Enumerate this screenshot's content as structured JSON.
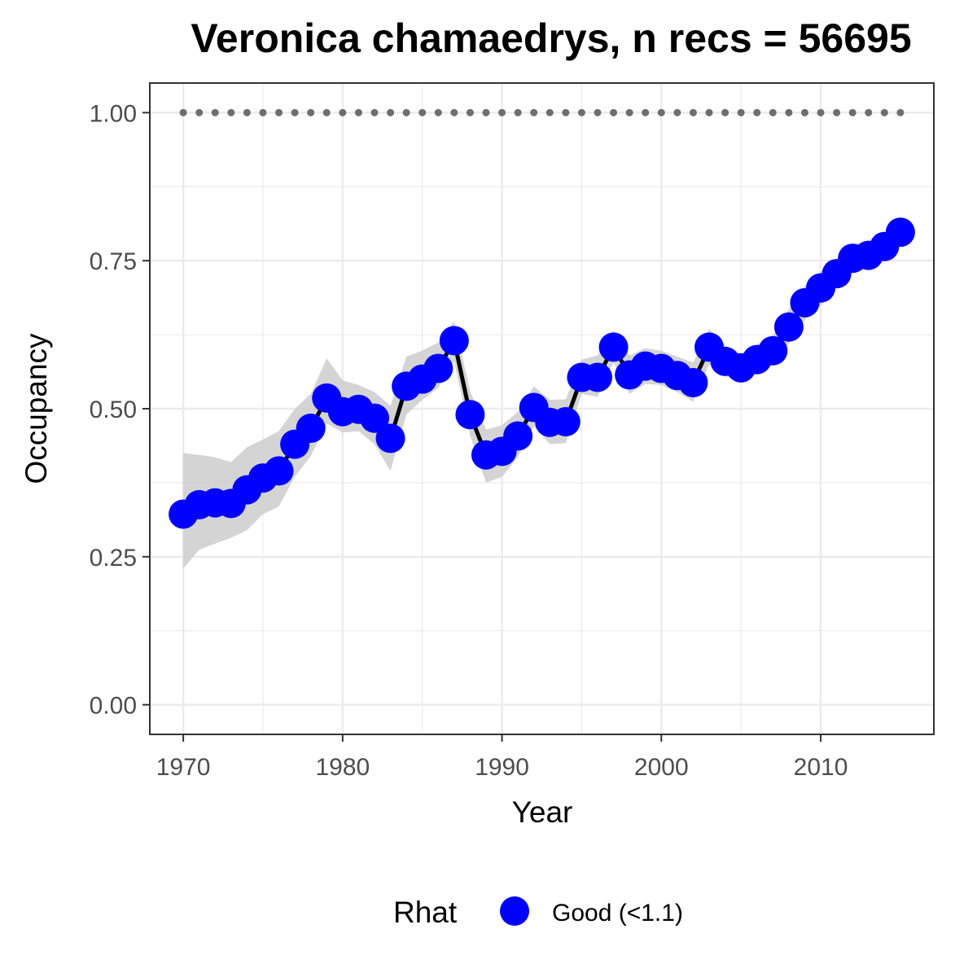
{
  "chart_data": {
    "type": "line",
    "title": "Veronica chamaedrys, n recs = 56695",
    "xlabel": "Year",
    "ylabel": "Occupancy",
    "xlim": [
      1967.9,
      2017.1
    ],
    "ylim": [
      -0.05,
      1.05
    ],
    "x_ticks": [
      1970,
      1980,
      1990,
      2000,
      2010
    ],
    "y_ticks": [
      0.0,
      0.25,
      0.5,
      0.75,
      1.0
    ],
    "y_tick_labels": [
      "0.00",
      "0.25",
      "0.50",
      "0.75",
      "1.00"
    ],
    "grid": true,
    "x": [
      1970,
      1971,
      1972,
      1973,
      1974,
      1975,
      1976,
      1977,
      1978,
      1979,
      1980,
      1981,
      1982,
      1983,
      1984,
      1985,
      1986,
      1987,
      1988,
      1989,
      1990,
      1991,
      1992,
      1993,
      1994,
      1995,
      1996,
      1997,
      1998,
      1999,
      2000,
      2001,
      2002,
      2003,
      2004,
      2005,
      2006,
      2007,
      2008,
      2009,
      2010,
      2011,
      2012,
      2013,
      2014,
      2015
    ],
    "series": [
      {
        "name": "Occupancy",
        "values": [
          0.322,
          0.338,
          0.341,
          0.34,
          0.363,
          0.383,
          0.395,
          0.44,
          0.467,
          0.518,
          0.495,
          0.499,
          0.484,
          0.45,
          0.538,
          0.55,
          0.568,
          0.615,
          0.49,
          0.422,
          0.428,
          0.454,
          0.502,
          0.477,
          0.478,
          0.553,
          0.553,
          0.604,
          0.557,
          0.572,
          0.568,
          0.556,
          0.544,
          0.604,
          0.58,
          0.569,
          0.583,
          0.598,
          0.638,
          0.679,
          0.704,
          0.728,
          0.754,
          0.759,
          0.774,
          0.798
        ],
        "lower": [
          0.23,
          0.262,
          0.272,
          0.282,
          0.295,
          0.322,
          0.335,
          0.385,
          0.42,
          0.475,
          0.46,
          0.462,
          0.44,
          0.395,
          0.49,
          0.515,
          0.535,
          0.58,
          0.455,
          0.375,
          0.385,
          0.418,
          0.47,
          0.44,
          0.442,
          0.525,
          0.52,
          0.578,
          0.525,
          0.542,
          0.54,
          0.528,
          0.512,
          0.575,
          0.555,
          0.545,
          0.56,
          0.575,
          0.61,
          0.65,
          0.675,
          0.705,
          0.73,
          0.736,
          0.752,
          0.776
        ],
        "upper": [
          0.425,
          0.422,
          0.418,
          0.41,
          0.435,
          0.448,
          0.462,
          0.5,
          0.525,
          0.585,
          0.548,
          0.54,
          0.528,
          0.505,
          0.588,
          0.598,
          0.612,
          0.648,
          0.53,
          0.465,
          0.472,
          0.495,
          0.538,
          0.515,
          0.516,
          0.583,
          0.59,
          0.632,
          0.59,
          0.602,
          0.598,
          0.588,
          0.578,
          0.635,
          0.606,
          0.594,
          0.608,
          0.624,
          0.668,
          0.708,
          0.732,
          0.752,
          0.778,
          0.782,
          0.796,
          0.82
        ],
        "color": "#0000FF",
        "line_color": "#000000",
        "ribbon_color": "#cccccc"
      },
      {
        "name": "",
        "values": [
          1,
          1,
          1,
          1,
          1,
          1,
          1,
          1,
          1,
          1,
          1,
          1,
          1,
          1,
          1,
          1,
          1,
          1,
          1,
          1,
          1,
          1,
          1,
          1,
          1,
          1,
          1,
          1,
          1,
          1,
          1,
          1,
          1,
          1,
          1,
          1,
          1,
          1,
          1,
          1,
          1,
          1,
          1,
          1,
          1,
          1
        ],
        "color": "#6e6e6e",
        "style": "dotted"
      }
    ],
    "legend": {
      "title": "Rhat",
      "position": "bottom",
      "entries": [
        {
          "label": "Good (<1.1)",
          "color": "#0000FF"
        }
      ]
    }
  }
}
